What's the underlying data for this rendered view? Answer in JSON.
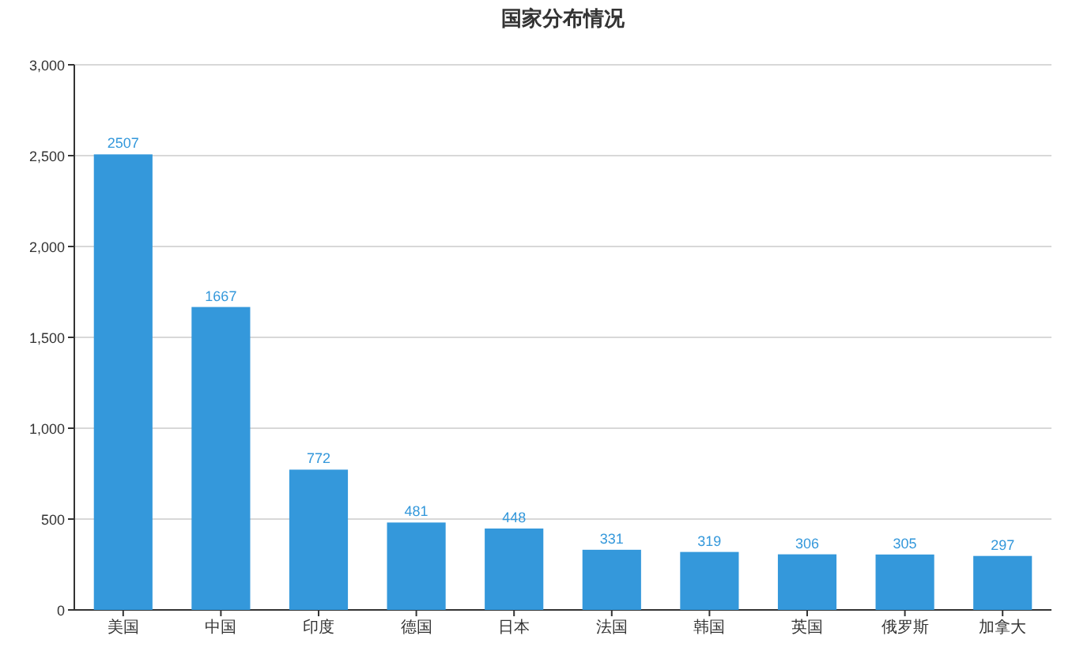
{
  "chart_data": {
    "type": "bar",
    "title": "国家分布情况",
    "categories": [
      "美国",
      "中国",
      "印度",
      "德国",
      "日本",
      "法国",
      "韩国",
      "英国",
      "俄罗斯",
      "加拿大"
    ],
    "values": [
      2507,
      1667,
      772,
      481,
      448,
      331,
      319,
      306,
      305,
      297
    ],
    "color": "#3498db",
    "ylim": [
      0,
      3000
    ],
    "yticks": [
      0,
      {
        "value": 500,
        "label": "500"
      },
      {
        "value": 1000,
        "label": "1,000"
      },
      {
        "value": 1500,
        "label": "1,500"
      },
      {
        "value": 2000,
        "label": "2,000"
      },
      {
        "value": 2500,
        "label": "2,500"
      },
      {
        "value": 3000,
        "label": "3,000"
      }
    ],
    "grid": "y",
    "data_labels": true
  }
}
